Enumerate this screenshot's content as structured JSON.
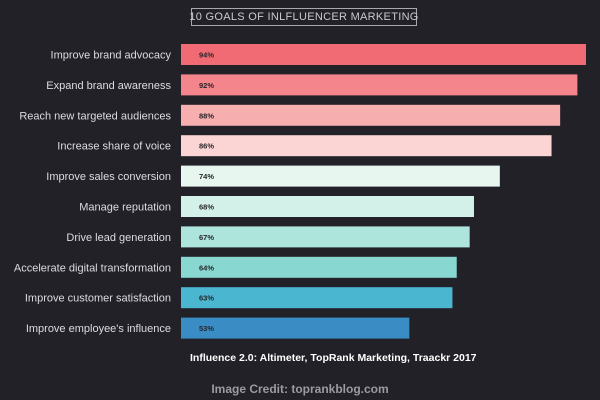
{
  "chart_data": {
    "type": "bar",
    "orientation": "horizontal",
    "title": "10 GOALS OF INLFLUENCER MARKETING",
    "categories": [
      "Improve brand advocacy",
      "Expand brand awareness",
      "Reach new targeted audiences",
      "Increase share of voice",
      "Improve sales conversion",
      "Manage reputation",
      "Drive lead generation",
      "Accelerate digital transformation",
      "Improve customer satisfaction",
      "Improve employee's influence"
    ],
    "values": [
      94,
      92,
      88,
      86,
      74,
      68,
      67,
      64,
      63,
      53
    ],
    "value_labels": [
      "94%",
      "92%",
      "88%",
      "86%",
      "74%",
      "68%",
      "67%",
      "64%",
      "63%",
      "53%"
    ],
    "bar_colors": [
      "#f06b74",
      "#f5858c",
      "#f7aeae",
      "#fbd5d3",
      "#e8f6f0",
      "#d3f0e9",
      "#ade4dc",
      "#88d7d1",
      "#4bb6cf",
      "#3a8cc4"
    ],
    "xlim": [
      0,
      94
    ],
    "grid": false,
    "legend": false
  },
  "source": "Influence 2.0: Altimeter, TopRank Marketing, Traackr 2017",
  "credit": "Image Credit: toprankblog.com"
}
